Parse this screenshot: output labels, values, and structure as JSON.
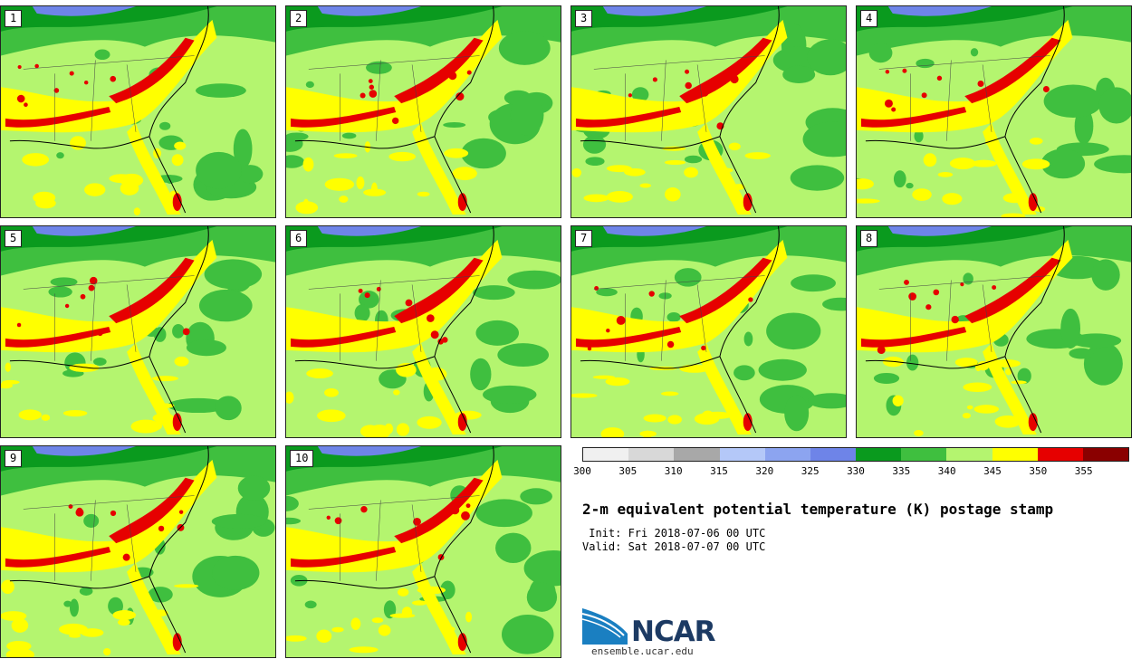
{
  "panels": [
    "1",
    "2",
    "3",
    "4",
    "5",
    "6",
    "7",
    "8",
    "9",
    "10"
  ],
  "title": "2-m equivalent potential temperature (K) postage stamp",
  "init": " Init: Fri 2018-07-06 00 UTC",
  "valid": "Valid: Sat 2018-07-07 00 UTC",
  "colorbar": {
    "ticks": [
      "300",
      "305",
      "310",
      "315",
      "320",
      "325",
      "330",
      "335",
      "340",
      "345",
      "350",
      "355"
    ],
    "colors": [
      "#f0f0f0",
      "#d8d8d8",
      "#a8a8a8",
      "#b4c8f8",
      "#8ca4f0",
      "#6e84e8",
      "#0a9a1e",
      "#3fbf3f",
      "#b4f56f",
      "#ffff00",
      "#e60000",
      "#8a0000"
    ]
  },
  "logo": {
    "name": "NCAR",
    "url": "ensemble.ucar.edu"
  }
}
